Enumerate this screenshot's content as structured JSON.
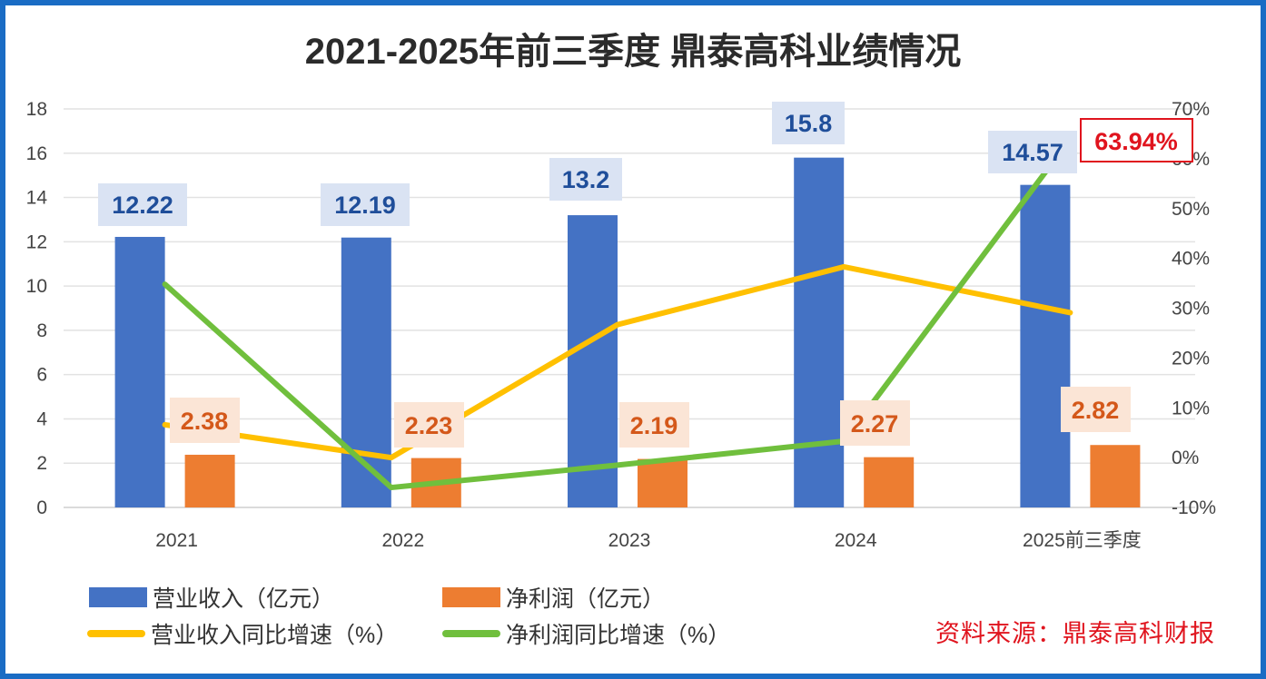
{
  "chart_data": {
    "type": "bar",
    "title": "2021-2025年前三季度 鼎泰高科业绩情况",
    "categories": [
      "2021",
      "2022",
      "2023",
      "2024",
      "2025前三季度"
    ],
    "left_axis": {
      "min": 0,
      "max": 18,
      "step": 2,
      "ticks": [
        "0",
        "2",
        "4",
        "6",
        "8",
        "10",
        "12",
        "14",
        "16",
        "18"
      ]
    },
    "right_axis": {
      "min": -10,
      "max": 70,
      "step": 10,
      "ticks": [
        "-10%",
        "0%",
        "10%",
        "20%",
        "30%",
        "40%",
        "50%",
        "60%",
        "70%"
      ]
    },
    "grid": true,
    "bar_series": [
      {
        "name": "营业收入（亿元）",
        "color": "#4472c4",
        "values": [
          12.22,
          12.19,
          13.2,
          15.8,
          14.57
        ],
        "labels": [
          "12.22",
          "12.19",
          "13.2",
          "15.8",
          "14.57"
        ]
      },
      {
        "name": "净利润（亿元）",
        "color": "#ed7d31",
        "values": [
          2.38,
          2.23,
          2.19,
          2.27,
          2.82
        ],
        "labels": [
          "2.38",
          "2.23",
          "2.19",
          "2.27",
          "2.82"
        ]
      }
    ],
    "line_series": [
      {
        "name": "营业收入同比增速（%）",
        "color": "#ffc000",
        "axis": "right",
        "values": [
          6.6,
          0.0,
          26.7,
          38.3,
          29.1
        ]
      },
      {
        "name": "净利润同比增速（%）",
        "color": "#70bf3d",
        "axis": "right",
        "values": [
          34.8,
          -6.0,
          -1.5,
          3.3,
          63.94
        ]
      }
    ],
    "annotations": [
      {
        "text": "63.94%",
        "series": "净利润同比增速（%）",
        "category": "2025前三季度",
        "color": "#e0141e"
      }
    ],
    "legend_position": "bottom-left"
  },
  "legend": {
    "items": [
      {
        "label": "营业收入（亿元）",
        "kind": "box",
        "color": "#4472c4"
      },
      {
        "label": "净利润（亿元）",
        "kind": "box",
        "color": "#ed7d31"
      },
      {
        "label": "营业收入同比增速（%）",
        "kind": "line",
        "color": "#ffc000"
      },
      {
        "label": "净利润同比增速（%）",
        "kind": "line",
        "color": "#70bf3d"
      }
    ]
  },
  "source": "资料来源：鼎泰高科财报"
}
